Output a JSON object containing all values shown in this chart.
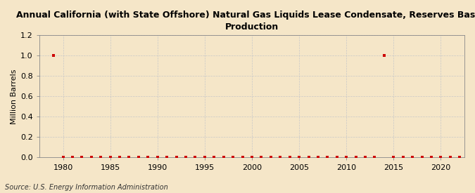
{
  "title": "Annual California (with State Offshore) Natural Gas Liquids Lease Condensate, Reserves Based\nProduction",
  "ylabel": "Million Barrels",
  "source": "Source: U.S. Energy Information Administration",
  "background_color": "#f5e6c8",
  "plot_background_color": "#f5e6c8",
  "line_color": "#cc0000",
  "marker_color": "#cc0000",
  "grid_color": "#c8c8c8",
  "xlim": [
    1977.5,
    2022.5
  ],
  "ylim": [
    0.0,
    1.2
  ],
  "yticks": [
    0.0,
    0.2,
    0.4,
    0.6,
    0.8,
    1.0,
    1.2
  ],
  "xticks": [
    1980,
    1985,
    1990,
    1995,
    2000,
    2005,
    2010,
    2015,
    2020
  ],
  "years": [
    1979,
    1980,
    1981,
    1982,
    1983,
    1984,
    1985,
    1986,
    1987,
    1988,
    1989,
    1990,
    1991,
    1992,
    1993,
    1994,
    1995,
    1996,
    1997,
    1998,
    1999,
    2000,
    2001,
    2002,
    2003,
    2004,
    2005,
    2006,
    2007,
    2008,
    2009,
    2010,
    2011,
    2012,
    2013,
    2014,
    2015,
    2016,
    2017,
    2018,
    2019,
    2020,
    2021,
    2022
  ],
  "values": [
    1.0,
    0.0,
    0.0,
    0.0,
    0.0,
    0.0,
    0.0,
    0.0,
    0.0,
    0.0,
    0.0,
    0.0,
    0.0,
    0.0,
    0.0,
    0.0,
    0.0,
    0.0,
    0.0,
    0.0,
    0.0,
    0.0,
    0.0,
    0.0,
    0.0,
    0.0,
    0.0,
    0.0,
    0.0,
    0.0,
    0.0,
    0.0,
    0.0,
    0.0,
    0.0,
    1.0,
    0.0,
    0.0,
    0.0,
    0.0,
    0.0,
    0.0,
    0.0,
    0.0
  ],
  "title_fontsize": 9,
  "tick_fontsize": 8,
  "ylabel_fontsize": 8,
  "source_fontsize": 7
}
